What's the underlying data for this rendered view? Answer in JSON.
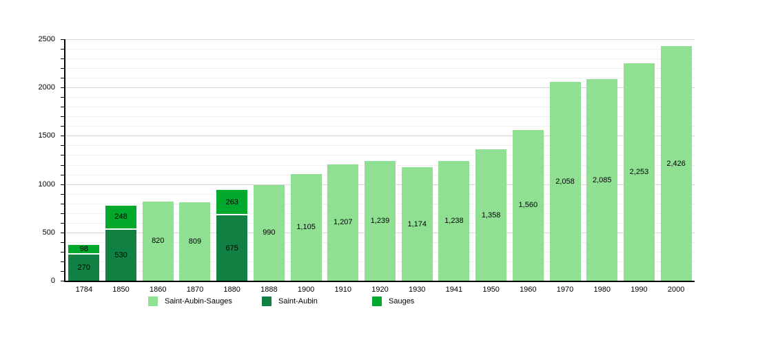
{
  "page": {
    "background": "#ffffff"
  },
  "chart_data": {
    "type": "bar",
    "title": "",
    "xlabel": "",
    "ylabel": "",
    "ylim": [
      0,
      2500
    ],
    "ytick_major": 500,
    "ytick_minor": 100,
    "grid": true,
    "legend_position": "bottom",
    "value_labels": "inside-center",
    "categories": [
      "1784",
      "1850",
      "1860",
      "1870",
      "1880",
      "1888",
      "1900",
      "1910",
      "1920",
      "1930",
      "1941",
      "1950",
      "1960",
      "1970",
      "1980",
      "1990",
      "2000"
    ],
    "series": [
      {
        "name": "Saint-Aubin-Sauges",
        "color": "#90e094",
        "values": [
          null,
          null,
          820,
          809,
          null,
          990,
          1105,
          1207,
          1239,
          1174,
          1238,
          1358,
          1560,
          2058,
          2085,
          2253,
          2426
        ]
      },
      {
        "name": "Saint-Aubin",
        "color": "#108142",
        "values": [
          270,
          530,
          null,
          null,
          675,
          null,
          null,
          null,
          null,
          null,
          null,
          null,
          null,
          null,
          null,
          null,
          null
        ]
      },
      {
        "name": "Sauges",
        "color": "#00a82c",
        "values": [
          98,
          248,
          null,
          null,
          263,
          null,
          null,
          null,
          null,
          null,
          null,
          null,
          null,
          null,
          null,
          null,
          null
        ]
      }
    ]
  }
}
